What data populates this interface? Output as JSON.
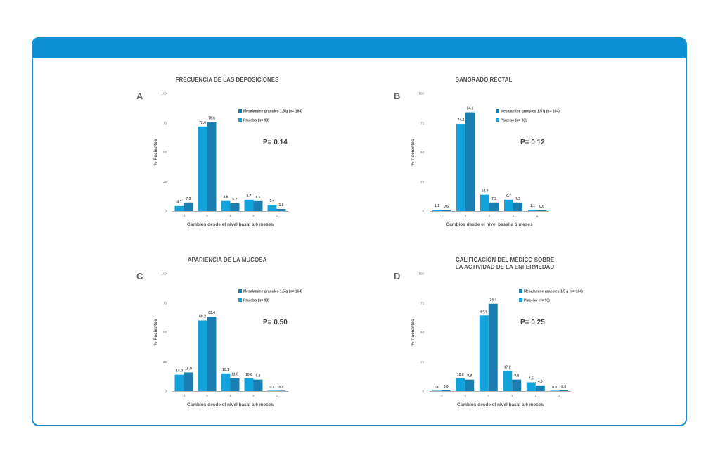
{
  "colors": {
    "header": "#0b8ed3",
    "border": "#1a90d0",
    "mesalamine": "#1a7fb0",
    "placebo": "#12a3dc"
  },
  "chart_data": [
    {
      "type": "bar",
      "letter": "A",
      "title": [
        "FRECUENCIA DE LAS DEPOSICIONES"
      ],
      "xlabel": "Cambios desde el nivel basal a 6 meses",
      "ylabel": "% Pacientes",
      "ylim": [
        0,
        100
      ],
      "yticks": [
        "0",
        "25",
        "50",
        "75",
        "100"
      ],
      "categories": [
        "-1",
        "0",
        "1",
        "2",
        "3"
      ],
      "legend": [
        "Mesalamine granules 1.5 g (n= 164)",
        "Placebo (n= 93)"
      ],
      "pvalue": "P= 0.14",
      "series": [
        {
          "name": "Placebo (n= 93)",
          "values": [
            4.3,
            72.0,
            8.6,
            9.7,
            5.4
          ]
        },
        {
          "name": "Mesalamine granules 1.5 g (n= 164)",
          "values": [
            7.3,
            75.6,
            6.7,
            8.5,
            1.8
          ]
        }
      ]
    },
    {
      "type": "bar",
      "letter": "B",
      "title": [
        "SANGRADO RECTAL"
      ],
      "xlabel": "Cambios desde el nivel basal a 6 meses",
      "ylabel": "% Pacientes",
      "ylim": [
        0,
        100
      ],
      "yticks": [
        "0",
        "25",
        "50",
        "75",
        "100"
      ],
      "categories": [
        "-1",
        "0",
        "1",
        "2",
        "3"
      ],
      "legend": [
        "Mesalamine granules 1.5 g (n= 164)",
        "Placebo (n= 93)"
      ],
      "pvalue": "P= 0.12",
      "series": [
        {
          "name": "Placebo (n= 93)",
          "values": [
            1.1,
            74.2,
            14.0,
            9.7,
            1.1
          ]
        },
        {
          "name": "Mesalamine granules 1.5 g (n= 164)",
          "values": [
            0.6,
            84.1,
            7.3,
            7.3,
            0.6
          ]
        }
      ]
    },
    {
      "type": "bar",
      "letter": "C",
      "title": [
        "APARIENCIA DE LA MUCOSA"
      ],
      "xlabel": "Cambios desde el nivel basal a 6 meses",
      "ylabel": "% Pacientes",
      "ylim": [
        0,
        100
      ],
      "yticks": [
        "0",
        "25",
        "50",
        "75",
        "100"
      ],
      "categories": [
        "-1",
        "0",
        "1",
        "2",
        "3"
      ],
      "legend": [
        "Mesalamine granules 1.5 g (n= 164)",
        "Placebo (n= 93)"
      ],
      "pvalue": "P= 0.50",
      "series": [
        {
          "name": "Placebo (n= 93)",
          "values": [
            14.0,
            60.2,
            15.1,
            10.8,
            0.0
          ]
        },
        {
          "name": "Mesalamine granules 1.5 g (n= 164)",
          "values": [
            15.9,
            63.4,
            11.0,
            9.8,
            0.0
          ]
        }
      ]
    },
    {
      "type": "bar",
      "letter": "D",
      "title": [
        "CALIFICACIÓN DEL MÉDICO SOBRE",
        "LA ACTIVIDAD DE LA ENFERMEDAD"
      ],
      "xlabel": "Cambios desde el nivel basal a 6 meses",
      "ylabel": "% Pacientes",
      "ylim": [
        0,
        100
      ],
      "yticks": [
        "0",
        "25",
        "50",
        "75",
        "100"
      ],
      "categories": [
        "-2",
        "-1",
        "0",
        "1",
        "2",
        "3"
      ],
      "legend": [
        "Mesalamine granules 1.5 g (n= 164)",
        "Placebo (n= 93)"
      ],
      "pvalue": "P= 0.25",
      "series": [
        {
          "name": "Placebo (n= 93)",
          "values": [
            0.0,
            10.8,
            64.5,
            17.2,
            7.5,
            0.0
          ]
        },
        {
          "name": "Mesalamine granules 1.5 g (n= 164)",
          "values": [
            0.6,
            9.8,
            74.4,
            9.8,
            4.9,
            0.6
          ]
        }
      ]
    }
  ]
}
